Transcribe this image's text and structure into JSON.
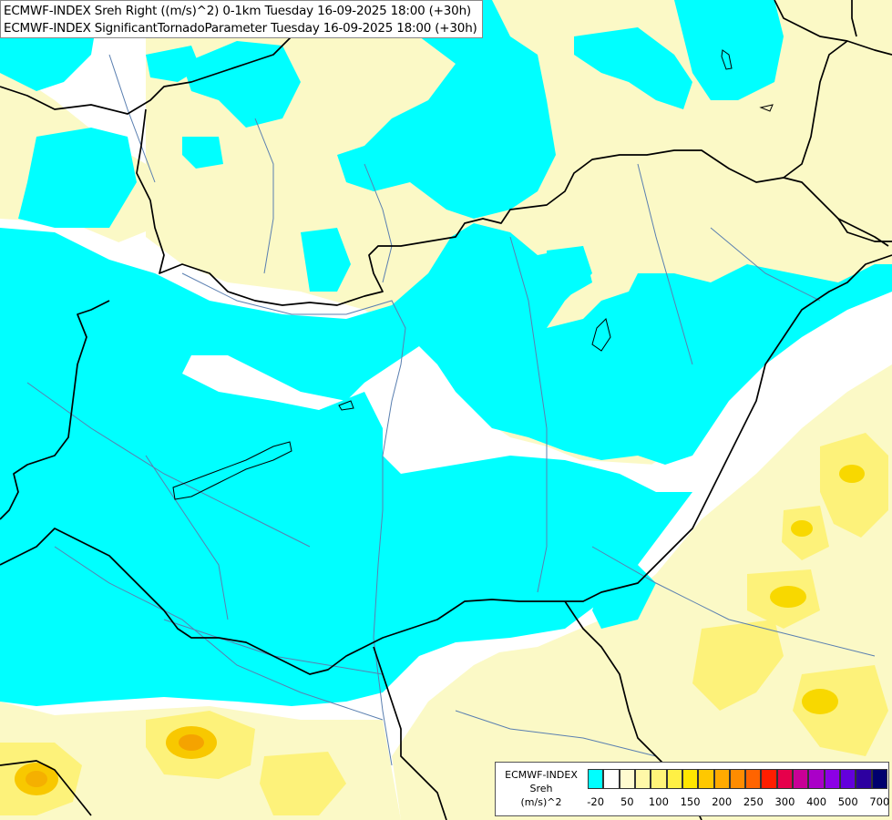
{
  "header": {
    "line1": "ECMWF-INDEX Sreh Right ((m/s)^2) 0-1km Tuesday 16-09-2025 18:00 (+30h)",
    "line2": "ECMWF-INDEX SignificantTornadoParameter Tuesday 16-09-2025 18:00 (+30h)"
  },
  "legend": {
    "source": "ECMWF-INDEX",
    "variable": "Sreh",
    "unit": "(m/s)^2",
    "colors": [
      "#00ffff",
      "#ffffff",
      "#fffbd0",
      "#fff8a8",
      "#fff47a",
      "#fff045",
      "#ffe600",
      "#ffc800",
      "#ffaa00",
      "#ff8c00",
      "#ff6400",
      "#ff1e00",
      "#e6004b",
      "#c80096",
      "#aa00c8",
      "#8c00e6",
      "#6400dc",
      "#2d00a0",
      "#00006e"
    ],
    "tick_labels": [
      "-20",
      "50",
      "100",
      "150",
      "200",
      "250",
      "300",
      "400",
      "500",
      "700"
    ]
  },
  "colors": {
    "cyan_field": "#00ffff",
    "pale_yellow_field": "#fbf9c6",
    "yellow_field": "#fdf27a",
    "orange_core": "#f5a300",
    "border_line": "#000000",
    "river_line": "#5a7fb0"
  }
}
